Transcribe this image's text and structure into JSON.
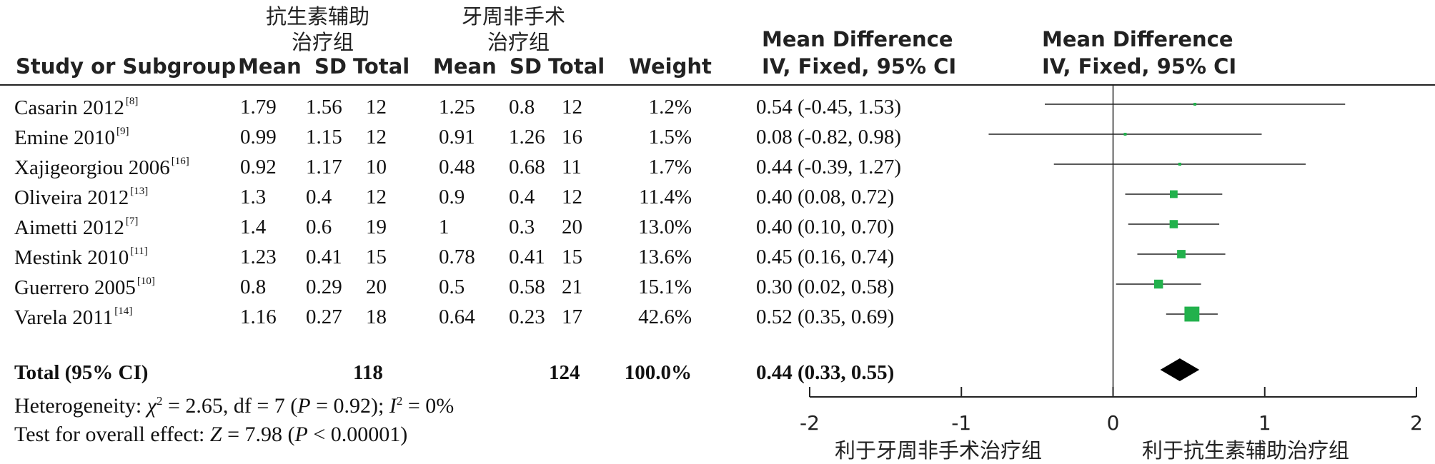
{
  "header": {
    "group1_line1": "抗生素辅助",
    "group1_line2": "治疗组",
    "group2_line1": "牙周非手术",
    "group2_line2": "治疗组",
    "study": "Study or Subgroup",
    "mean": "Mean",
    "sd": "SD",
    "total": "Total",
    "weight": "Weight",
    "md_title": "Mean Difference",
    "md_sub": "IV, Fixed, 95% CI",
    "plot_title": "Mean Difference",
    "plot_sub": "IV, Fixed, 95% CI"
  },
  "studies": [
    {
      "name": "Casarin 2012",
      "ref": "[8]",
      "m1": "1.79",
      "sd1": "1.56",
      "n1": "12",
      "m2": "1.25",
      "sd2": "0.8",
      "n2": "12",
      "weight": "1.2%",
      "ci": "0.54 (-0.45, 1.53)"
    },
    {
      "name": "Emine 2010",
      "ref": "[9]",
      "m1": "0.99",
      "sd1": "1.15",
      "n1": "12",
      "m2": "0.91",
      "sd2": "1.26",
      "n2": "16",
      "weight": "1.5%",
      "ci": "0.08 (-0.82, 0.98)"
    },
    {
      "name": "Xajigeorgiou 2006",
      "ref": "[16]",
      "m1": "0.92",
      "sd1": "1.17",
      "n1": "10",
      "m2": "0.48",
      "sd2": "0.68",
      "n2": "11",
      "weight": "1.7%",
      "ci": "0.44 (-0.39, 1.27)"
    },
    {
      "name": "Oliveira 2012",
      "ref": "[13]",
      "m1": "1.3",
      "sd1": "0.4",
      "n1": "12",
      "m2": "0.9",
      "sd2": "0.4",
      "n2": "12",
      "weight": "11.4%",
      "ci": "0.40 (0.08, 0.72)"
    },
    {
      "name": "Aimetti 2012",
      "ref": "[7]",
      "m1": "1.4",
      "sd1": "0.6",
      "n1": "19",
      "m2": "1",
      "sd2": "0.3",
      "n2": "20",
      "weight": "13.0%",
      "ci": "0.40 (0.10, 0.70)"
    },
    {
      "name": "Mestink 2010",
      "ref": "[11]",
      "m1": "1.23",
      "sd1": "0.41",
      "n1": "15",
      "m2": "0.78",
      "sd2": "0.41",
      "n2": "15",
      "weight": "13.6%",
      "ci": "0.45 (0.16, 0.74)"
    },
    {
      "name": "Guerrero 2005",
      "ref": "[10]",
      "m1": "0.8",
      "sd1": "0.29",
      "n1": "20",
      "m2": "0.5",
      "sd2": "0.58",
      "n2": "21",
      "weight": "15.1%",
      "ci": "0.30 (0.02, 0.58)"
    },
    {
      "name": "Varela 2011",
      "ref": "[14]",
      "m1": "1.16",
      "sd1": "0.27",
      "n1": "18",
      "m2": "0.64",
      "sd2": "0.23",
      "n2": "17",
      "weight": "42.6%",
      "ci": "0.52 (0.35, 0.69)"
    }
  ],
  "total": {
    "label": "Total (95% CI)",
    "n1": "118",
    "n2": "124",
    "weight": "100.0%",
    "ci": "0.44 (0.33, 0.55)"
  },
  "heterogeneity": {
    "prefix": "Heterogeneity: ",
    "chi": "χ",
    "chi_sup": "2",
    "chi_rest": " = 2.65, df = 7 (",
    "p": "P",
    "p_rest": " = 0.92); ",
    "i": "I",
    "i_sup": "2",
    "i_rest": " = 0%"
  },
  "overall": {
    "prefix": "Test for overall effect: ",
    "z": "Z",
    "z_rest": " = 7.98 (",
    "p": "P",
    "p_rest": " < 0.00001)"
  },
  "axis": {
    "favours_left": "利于牙周非手术治疗组",
    "favours_right": "利于抗生素辅助治疗组"
  },
  "colors": {
    "marker": "#22b14c",
    "diamond": "#000000",
    "line": "#222222"
  },
  "chart_data": {
    "type": "forest",
    "xlim": [
      -2,
      2
    ],
    "ticks": [
      -2,
      -1,
      0,
      1,
      2
    ],
    "tick_labels": [
      "-2",
      "-1",
      "0",
      "1",
      "2"
    ],
    "points": [
      {
        "study": "Casarin 2012",
        "md": 0.54,
        "lo": -0.45,
        "hi": 1.53,
        "weight": 1.2
      },
      {
        "study": "Emine 2010",
        "md": 0.08,
        "lo": -0.82,
        "hi": 0.98,
        "weight": 1.5
      },
      {
        "study": "Xajigeorgiou 2006",
        "md": 0.44,
        "lo": -0.39,
        "hi": 1.27,
        "weight": 1.7
      },
      {
        "study": "Oliveira 2012",
        "md": 0.4,
        "lo": 0.08,
        "hi": 0.72,
        "weight": 11.4
      },
      {
        "study": "Aimetti 2012",
        "md": 0.4,
        "lo": 0.1,
        "hi": 0.7,
        "weight": 13.0
      },
      {
        "study": "Mestink 2010",
        "md": 0.45,
        "lo": 0.16,
        "hi": 0.74,
        "weight": 13.6
      },
      {
        "study": "Guerrero 2005",
        "md": 0.3,
        "lo": 0.02,
        "hi": 0.58,
        "weight": 15.1
      },
      {
        "study": "Varela 2011",
        "md": 0.52,
        "lo": 0.35,
        "hi": 0.69,
        "weight": 42.6
      }
    ],
    "pooled": {
      "md": 0.44,
      "lo": 0.33,
      "hi": 0.55
    }
  }
}
